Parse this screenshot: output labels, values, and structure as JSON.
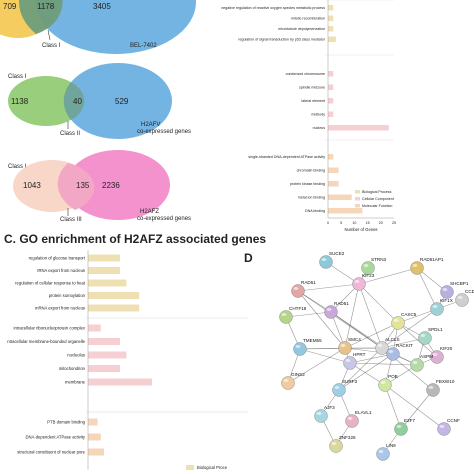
{
  "venn_a": {
    "left": "709",
    "mid": "1178",
    "right": "3405",
    "cls": "Class I",
    "other": "BEL-7402"
  },
  "venn_b": {
    "cls": "Class I",
    "left": "1138",
    "mid": "40",
    "right": "529",
    "sub": "Class II",
    "gene": "H2AFV",
    "coexp": "co-expressed genes"
  },
  "venn_c": {
    "cls": "Class I",
    "left": "1043",
    "mid": "135",
    "right": "2236",
    "sub": "Class III",
    "gene": "H2AFZ",
    "coexp": "co-expressed genes"
  },
  "panel_b": {
    "bp": [
      {
        "label": "negative regulation of reactive oxygen species metabolic process",
        "value": 2
      },
      {
        "label": "mitotic recombination",
        "value": 2
      },
      {
        "label": "microtubule depolymerization",
        "value": 2
      },
      {
        "label": "regulation of signal transduction by p53 class mediator",
        "value": 3
      }
    ],
    "cc": [
      {
        "label": "condensed chromosome",
        "value": 2
      },
      {
        "label": "spindle midzone",
        "value": 2
      },
      {
        "label": "lateral element",
        "value": 2
      },
      {
        "label": "midbody",
        "value": 2
      },
      {
        "label": "nucleus",
        "value": 23
      }
    ],
    "mf": [
      {
        "label": "single-stranded DNA-dependent ATPase activity",
        "value": 2
      },
      {
        "label": "chromatin binding",
        "value": 4
      },
      {
        "label": "protein kinase binding",
        "value": 4
      },
      {
        "label": "metal ion binding",
        "value": 9
      },
      {
        "label": "DNA binding",
        "value": 13
      }
    ],
    "xticks": [
      "0",
      "5",
      "10",
      "15",
      "20",
      "25"
    ],
    "xlabel": "Number of Genes",
    "legend": [
      "Biological Process",
      "Cellular Component",
      "Molecular Function"
    ]
  },
  "panel_c": {
    "title": "C. GO enrichment of H2AFZ associated genes",
    "bp": [
      {
        "label": "regulation of glucose transport",
        "value": 5
      },
      {
        "label": "tRNA export from nucleus",
        "value": 5
      },
      {
        "label": "regulation of cellular response to heat",
        "value": 6
      },
      {
        "label": "protein sumoylation",
        "value": 8
      },
      {
        "label": "mRNA export from nucleus",
        "value": 8
      }
    ],
    "cc": [
      {
        "label": "intracellular ribonucleoprotein complex",
        "value": 2
      },
      {
        "label": "ntracellular membrane-bounded organelle",
        "value": 5
      },
      {
        "label": "nucleolus",
        "value": 6
      },
      {
        "label": "mitochondrion",
        "value": 5
      },
      {
        "label": "membrane",
        "value": 10
      }
    ],
    "mf": [
      {
        "label": "PTB domain binding",
        "value": 1.5
      },
      {
        "label": "DNA-dependent ATPase activity",
        "value": 2
      },
      {
        "label": "structural constituent of nuclear pore",
        "value": 2.5
      }
    ],
    "legend": "Biological Proce"
  },
  "panel_d": {
    "label": "D",
    "nodes": [
      "SUCE2",
      "STRN3",
      "RAD51AP1",
      "RAD51",
      "SHCBP1",
      "CCDC18",
      "KIF23",
      "KIF1X",
      "CHTF18",
      "RAD51",
      "TMEM55",
      "SMC4",
      "ALCLS",
      "CASC5",
      "SPDL1",
      "RACKIT",
      "KIF20",
      "ASPM",
      "HPRT",
      "GINS2",
      "SURF3",
      "POB",
      "FBXW10",
      "AJF3",
      "ELAVL1",
      "E2F7",
      "CCNF",
      "ZNF326",
      "LIN9"
    ]
  },
  "colors": {
    "bp": "#efe0b4",
    "cc": "#f5cfd2",
    "mf": "#f6d6b8",
    "yellow": "#f3c64e",
    "blue": "#5aa7de",
    "green": "#8dc96e",
    "pink": "#f27fc4",
    "peach": "#f6c9b6"
  }
}
